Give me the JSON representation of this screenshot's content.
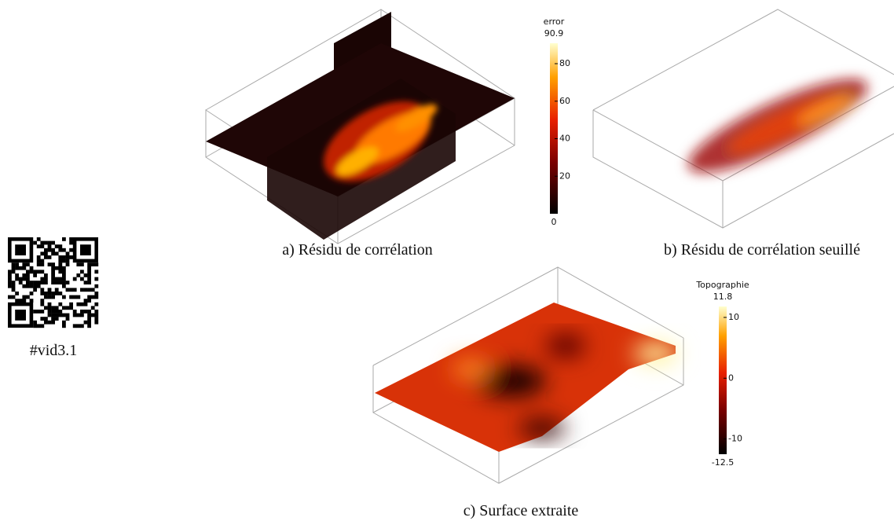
{
  "qr_caption": "#vid3.1",
  "panels": [
    {
      "caption": "a) Résidu de corrélation",
      "colorbar": {
        "title": "error",
        "min": 0,
        "max": 90.9,
        "ticks": [
          20,
          40,
          60,
          80
        ]
      }
    },
    {
      "caption": "b) Résidu de corrélation seuillé"
    },
    {
      "caption": "c) Surface extraite",
      "colorbar": {
        "title": "Topographie",
        "min": -12.5,
        "max": 11.8,
        "ticks": [
          -10,
          0,
          10
        ]
      }
    }
  ]
}
